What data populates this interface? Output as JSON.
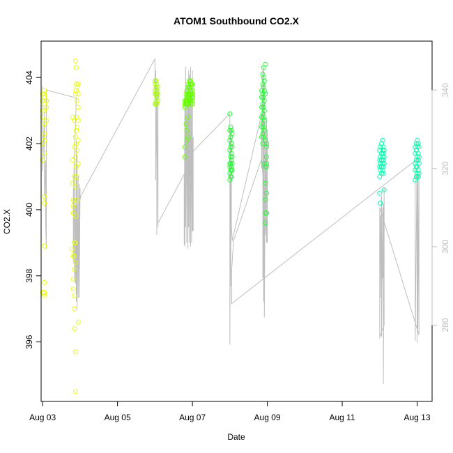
{
  "chart_data": {
    "type": "scatter",
    "title": "ATOM1 Southbound CO2.X",
    "xlabel": "Date",
    "ylabel": "CO2.X",
    "x_tick_labels": [
      "Aug 03",
      "Aug 05",
      "Aug 07",
      "Aug 09",
      "Aug 11",
      "Aug 13"
    ],
    "x_tick_days": [
      3,
      5,
      7,
      9,
      11,
      13
    ],
    "xlim": [
      2.96,
      13.4
    ],
    "ylim_left": [
      394.2,
      405.1
    ],
    "y_ticks_left": [
      396,
      398,
      400,
      402,
      404
    ],
    "ylim_right": [
      260.5,
      352.5
    ],
    "y_ticks_right": [
      280,
      300,
      320,
      340
    ],
    "grid": false,
    "legend": "none",
    "secondary_series_color": "#bebebe",
    "scatter_series": [
      {
        "color": "#e6ff00",
        "x": [
          3.0,
          3.0,
          3.0,
          3.0,
          3.0,
          3.0,
          3.0,
          3.05,
          3.05,
          3.05,
          3.05,
          3.05,
          3.05,
          3.05,
          3.05,
          3.05,
          3.05,
          3.05,
          3.05,
          3.05,
          3.05,
          3.05,
          3.1,
          3.1,
          3.1
        ],
        "y": [
          403.5,
          403.3,
          403.0,
          402.8,
          402.0,
          401.5,
          397.5,
          403.6,
          403.4,
          403.2,
          403.0,
          402.6,
          402.3,
          402.1,
          401.7,
          400.4,
          400.2,
          398.9,
          397.8,
          397.4,
          397.5,
          403.5,
          403.3,
          403.1,
          402.7
        ]
      },
      {
        "color": "#e8ff00",
        "x": [
          3.8,
          3.8,
          3.8,
          3.8,
          3.82,
          3.82,
          3.82,
          3.82,
          3.82,
          3.82,
          3.85,
          3.85,
          3.85,
          3.85,
          3.85,
          3.85,
          3.85,
          3.85,
          3.85,
          3.85,
          3.88,
          3.88,
          3.88,
          3.88,
          3.88,
          3.88,
          3.88,
          3.88,
          3.88,
          3.88,
          3.9,
          3.9,
          3.9,
          3.9,
          3.9,
          3.9,
          3.9,
          3.92,
          3.92,
          3.92,
          3.92,
          3.92,
          3.92,
          3.95,
          3.95,
          3.95,
          3.95,
          3.95,
          3.95,
          3.95
        ],
        "y": [
          402.8,
          401.5,
          400.8,
          398.8,
          400.3,
          400.1,
          399.9,
          398.6,
          397.9,
          397.6,
          402.7,
          401.9,
          401.0,
          400.2,
          399.0,
          398.6,
          398.2,
          397.4,
          397.0,
          396.4,
          404.5,
          403.5,
          402.2,
          401.6,
          400.7,
          399.8,
          399.0,
          398.4,
          395.7,
          394.5,
          404.3,
          403.8,
          403.6,
          402.8,
          402.4,
          402.0,
          401.3,
          403.7,
          403.3,
          402.5,
          401.8,
          401.0,
          400.3,
          403.8,
          403.5,
          403.1,
          402.7,
          402.1,
          401.4,
          396.6
        ]
      },
      {
        "color": "#a8ff00",
        "x": [
          6.0,
          6.0,
          6.0,
          6.0,
          6.0,
          6.03,
          6.03,
          6.03,
          6.03,
          6.03,
          6.05,
          6.05,
          6.05,
          6.05,
          6.05,
          6.08,
          6.08,
          6.08
        ],
        "y": [
          403.9,
          403.8,
          403.6,
          403.5,
          403.2,
          403.9,
          403.7,
          403.5,
          403.3,
          403.2,
          403.8,
          403.6,
          403.5,
          403.4,
          403.2,
          403.7,
          403.5,
          403.3
        ]
      },
      {
        "color": "#66ff00",
        "x": [
          6.8,
          6.8,
          6.8,
          6.8,
          6.8,
          6.83,
          6.83,
          6.83,
          6.83,
          6.85,
          6.85,
          6.85,
          6.85,
          6.85,
          6.85,
          6.88,
          6.88,
          6.88,
          6.88,
          6.88,
          6.88,
          6.88,
          6.9,
          6.9,
          6.9,
          6.9,
          6.9,
          6.92,
          6.92,
          6.92,
          6.92,
          6.92,
          6.95,
          6.95,
          6.95,
          6.95,
          6.95,
          6.95,
          6.98,
          6.98,
          6.98,
          6.98,
          7.0,
          7.0,
          7.0,
          7.0,
          7.0,
          7.0
        ],
        "y": [
          403.3,
          403.2,
          403.1,
          401.9,
          401.6,
          403.5,
          403.3,
          403.2,
          402.6,
          403.6,
          403.4,
          403.3,
          403.2,
          402.4,
          402.1,
          403.7,
          403.5,
          403.4,
          403.3,
          403.2,
          402.8,
          402.2,
          403.8,
          403.6,
          403.5,
          403.4,
          403.2,
          403.9,
          403.7,
          403.5,
          403.4,
          403.3,
          403.9,
          403.8,
          403.6,
          403.5,
          403.3,
          403.2,
          403.8,
          403.7,
          403.5,
          403.4,
          403.8,
          403.6,
          403.5,
          403.4,
          403.3,
          403.2
        ]
      },
      {
        "color": "#22ff33",
        "x": [
          8.0,
          8.0,
          8.0,
          8.0,
          8.0,
          8.0,
          8.0,
          8.0,
          8.02,
          8.02,
          8.02,
          8.02,
          8.02,
          8.02,
          8.02,
          8.04,
          8.04,
          8.04,
          8.04,
          8.04,
          8.04,
          8.04,
          8.06,
          8.06,
          8.06,
          8.06,
          8.06
        ],
        "y": [
          402.9,
          402.4,
          402.1,
          401.8,
          401.4,
          401.3,
          401.1,
          400.9,
          402.5,
          402.2,
          401.9,
          401.6,
          401.4,
          401.2,
          401.0,
          402.4,
          402.0,
          401.7,
          401.5,
          401.3,
          401.2,
          401.0,
          402.3,
          401.9,
          401.6,
          401.4,
          401.2
        ]
      },
      {
        "color": "#22ff33",
        "x": [
          8.85,
          8.85,
          8.85,
          8.85,
          8.85,
          8.85,
          8.88,
          8.88,
          8.88,
          8.88,
          8.88,
          8.88,
          8.88,
          8.88,
          8.9,
          8.9,
          8.9,
          8.9,
          8.9,
          8.9,
          8.9,
          8.9,
          8.92,
          8.92,
          8.92,
          8.92,
          8.92,
          8.92,
          8.92,
          8.95,
          8.95,
          8.95,
          8.95,
          8.95,
          8.95,
          8.95,
          8.95,
          8.98,
          8.98,
          8.98,
          8.98,
          8.98,
          8.98,
          8.98
        ],
        "y": [
          403.6,
          403.4,
          403.1,
          402.8,
          402.5,
          402.2,
          404.1,
          403.8,
          403.5,
          403.2,
          402.9,
          402.6,
          402.3,
          402.0,
          404.3,
          404.0,
          403.7,
          403.4,
          403.1,
          402.8,
          402.5,
          402.2,
          403.9,
          403.6,
          403.3,
          403.0,
          402.7,
          402.4,
          401.4,
          404.4,
          403.5,
          402.1,
          401.3,
          400.8,
          400.3,
          399.9,
          399.6,
          402.0,
          401.6,
          401.4,
          401.3,
          400.5,
          399.9,
          401.9
        ]
      },
      {
        "color": "#00ffaa",
        "x": [
          12.0,
          12.0,
          12.0,
          12.0,
          12.0,
          12.02,
          12.02,
          12.02,
          12.02,
          12.02,
          12.05,
          12.05,
          12.05,
          12.05,
          12.05,
          12.08,
          12.08,
          12.08,
          12.08,
          12.08,
          12.1,
          12.1,
          12.1,
          12.1,
          12.1,
          12.12,
          12.12,
          12.12,
          12.12
        ],
        "y": [
          401.8,
          401.5,
          401.3,
          401.0,
          400.5,
          401.9,
          401.6,
          401.4,
          401.2,
          400.2,
          402.0,
          401.7,
          401.5,
          401.3,
          401.1,
          402.1,
          401.8,
          401.6,
          401.4,
          401.2,
          401.9,
          401.7,
          401.5,
          401.3,
          401.1,
          401.8,
          401.6,
          401.4,
          400.6
        ]
      },
      {
        "color": "#00ffaa",
        "x": [
          12.95,
          12.95,
          12.95,
          12.95,
          12.95,
          12.98,
          12.98,
          12.98,
          12.98,
          12.98,
          13.0,
          13.0,
          13.0,
          13.0,
          13.0,
          13.03,
          13.03,
          13.03,
          13.03,
          13.03,
          13.05,
          13.05,
          13.05,
          13.05
        ],
        "y": [
          401.9,
          401.7,
          401.4,
          401.2,
          400.9,
          402.0,
          401.8,
          401.5,
          401.3,
          401.0,
          402.1,
          401.9,
          401.6,
          401.3,
          401.1,
          402.0,
          401.7,
          401.5,
          401.2,
          401.0,
          401.9,
          401.6,
          401.4,
          401.1
        ]
      }
    ],
    "line_series": {
      "color": "#bebebe",
      "x": [
        3.0,
        3.0,
        3.05,
        3.05,
        3.08,
        3.08,
        3.1,
        3.1,
        3.1,
        3.9,
        3.82,
        3.82,
        3.85,
        3.85,
        3.88,
        3.88,
        3.9,
        3.9,
        3.92,
        3.92,
        3.95,
        3.95,
        3.98,
        3.98,
        4.0,
        4.0,
        4.02,
        6.0,
        6.0,
        6.02,
        6.02,
        6.05,
        6.05,
        6.08,
        6.08,
        6.08,
        6.78,
        6.78,
        6.8,
        6.8,
        6.82,
        6.82,
        6.85,
        6.85,
        6.88,
        6.88,
        6.9,
        6.9,
        6.92,
        6.92,
        6.95,
        6.95,
        6.98,
        6.98,
        7.0,
        7.0,
        7.02,
        7.02,
        6.98,
        8.0,
        8.0,
        8.02,
        8.02,
        8.04,
        8.04,
        8.06,
        8.06,
        8.85,
        8.85,
        8.88,
        8.88,
        8.9,
        8.9,
        8.92,
        8.92,
        8.95,
        8.95,
        8.98,
        8.98,
        9.0,
        9.0,
        8.85,
        8.1,
        8.05,
        8.05,
        12.95,
        12.95,
        13.0,
        13.0,
        13.02,
        13.02,
        13.05,
        13.05,
        12.0,
        12.0,
        12.02,
        12.02,
        12.05,
        12.05,
        12.08,
        12.08,
        12.1,
        12.1,
        12.12,
        12.12,
        12.0
      ],
      "y": [
        341.0,
        319.3,
        334.6,
        312.8,
        322.0,
        307.0,
        299.5,
        340.0,
        340.0,
        338.0,
        314.0,
        296.0,
        322.0,
        291.0,
        311.0,
        290.5,
        327.0,
        286.0,
        323.0,
        284.0,
        318.0,
        287.0,
        316.0,
        287.0,
        315.0,
        312.0,
        313.0,
        348.0,
        338.0,
        345.0,
        317.0,
        343.0,
        303.0,
        341.0,
        305.0,
        306.0,
        318.5,
        300.5,
        338.0,
        300.0,
        346.0,
        305.0,
        342.0,
        301.0,
        341.0,
        299.5,
        345.0,
        305.0,
        344.0,
        301.0,
        346.0,
        300.0,
        342.0,
        301.0,
        345.0,
        304.0,
        328.0,
        304.0,
        324.0,
        334.0,
        275.0,
        330.0,
        290.0,
        330.0,
        305.0,
        302.0,
        301.5,
        334.0,
        320.0,
        345.0,
        292.0,
        346.0,
        286.0,
        342.0,
        282.0,
        330.0,
        303.0,
        333.0,
        301.0,
        330.0,
        301.0,
        322.5,
        301.5,
        294.5,
        285.5,
        322.0,
        276.0,
        323.0,
        275.5,
        318.0,
        279.0,
        319.0,
        277.5,
        310.0,
        276.5,
        308.0,
        287.0,
        313.0,
        277.0,
        310.0,
        292.0,
        311.0,
        265.0,
        315.0,
        280.0,
        277.0
      ]
    }
  }
}
